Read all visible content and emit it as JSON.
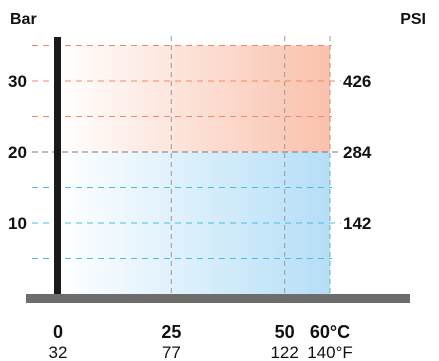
{
  "chart_data": {
    "type": "area",
    "title": "",
    "y_left_label": "Bar",
    "y_right_label": "PSI",
    "xlim": [
      0,
      60
    ],
    "ylim": [
      0,
      36
    ],
    "x_ticks_c": [
      "0",
      "25",
      "50",
      "60°C"
    ],
    "x_ticks_c_values": [
      0,
      25,
      50,
      60
    ],
    "x_ticks_f": [
      "32",
      "77",
      "122",
      "140°F"
    ],
    "y_left_ticks": [
      10,
      20,
      30
    ],
    "y_right_ticks": [
      {
        "label": "142",
        "bar": 10
      },
      {
        "label": "284",
        "bar": 20
      },
      {
        "label": "426",
        "bar": 30
      }
    ],
    "dashed_levels_bar": [
      5,
      10,
      15,
      20,
      25,
      30,
      35
    ],
    "regions": [
      {
        "from_bar": 0,
        "to_bar": 20,
        "color": "#b5def7"
      },
      {
        "from_bar": 20,
        "to_bar": 35,
        "color": "#f9c1ac"
      }
    ],
    "colors": {
      "blue_dash": "#45c1e0",
      "red_dash": "#f08a64",
      "axis": "#1a1a1a",
      "base_bar": "#6d6d6d",
      "v_grid": "#9a9a9a"
    }
  }
}
